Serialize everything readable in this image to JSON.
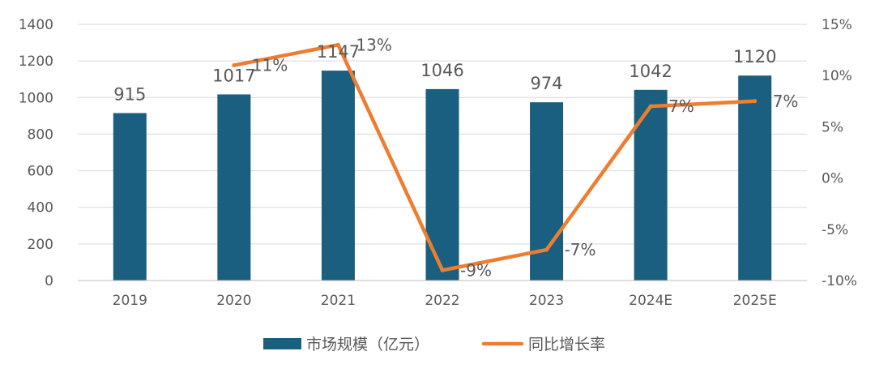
{
  "chart_data": {
    "type": "bar",
    "categories": [
      "2019",
      "2020",
      "2021",
      "2022",
      "2023",
      "2024E",
      "2025E"
    ],
    "series": [
      {
        "name": "市场规模（亿元）",
        "type": "bar",
        "axis": "left",
        "values": [
          915,
          1017,
          1147,
          1046,
          974,
          1042,
          1120
        ],
        "labels": [
          "915",
          "1017",
          "1147",
          "1046",
          "974",
          "1042",
          "1120"
        ],
        "color": "#1a5f7f"
      },
      {
        "name": "同比增长率",
        "type": "line",
        "axis": "right",
        "values": [
          null,
          11,
          13,
          -9,
          -7,
          7,
          7.5
        ],
        "labels": [
          null,
          "11%",
          "13%",
          "-9%",
          "-7%",
          "7%",
          "7%"
        ],
        "color": "#ed7d31"
      }
    ],
    "y_left": {
      "min": 0,
      "max": 1400,
      "step": 200,
      "ticks": [
        "0",
        "200",
        "400",
        "600",
        "800",
        "1000",
        "1200",
        "1400"
      ]
    },
    "y_right": {
      "min": -10,
      "max": 15,
      "step": 5,
      "ticks": [
        "-10%",
        "-5%",
        "0%",
        "5%",
        "10%",
        "15%"
      ]
    },
    "grid": true,
    "legend": "bottom-center"
  }
}
